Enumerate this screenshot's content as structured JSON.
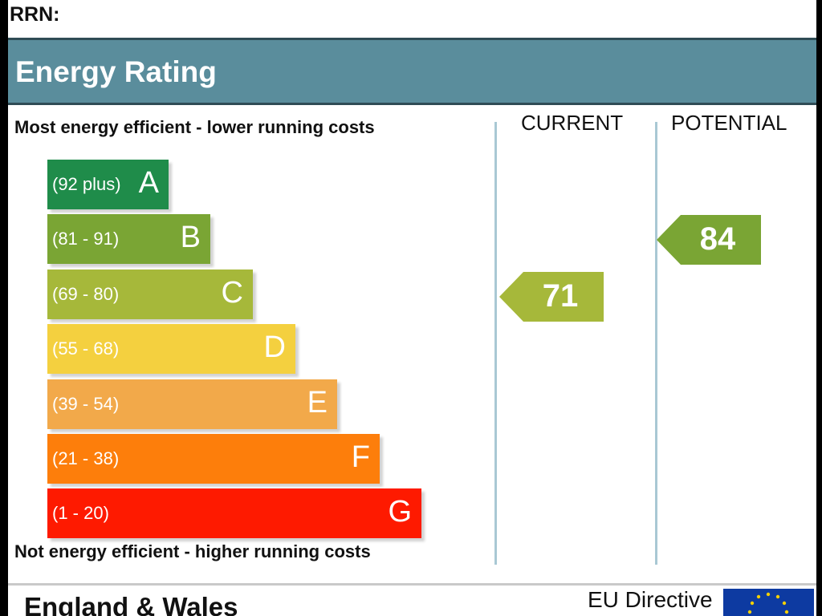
{
  "rrn_label": "RRN:",
  "header": {
    "title": "Energy Rating",
    "color": "#5a8d9c"
  },
  "scale": {
    "top_text": "Most energy efficient - lower running costs",
    "bottom_text": "Not energy efficient - higher running costs",
    "bands": [
      {
        "range": "(92 plus)",
        "letter": "A",
        "color": "#1f8c4a"
      },
      {
        "range": "(81 - 91)",
        "letter": "B",
        "color": "#7aa534"
      },
      {
        "range": "(69 - 80)",
        "letter": "C",
        "color": "#a6b83a"
      },
      {
        "range": "(55 - 68)",
        "letter": "D",
        "color": "#f4d03f"
      },
      {
        "range": "(39 - 54)",
        "letter": "E",
        "color": "#f2a94a"
      },
      {
        "range": "(21 - 38)",
        "letter": "F",
        "color": "#fd7e0b"
      },
      {
        "range": "(1 - 20)",
        "letter": "G",
        "color": "#fe1a00"
      }
    ]
  },
  "columns": {
    "current": {
      "label": "CURRENT",
      "value": "71",
      "band": "C",
      "color": "#a6b83a"
    },
    "potential": {
      "label": "POTENTIAL",
      "value": "84",
      "band": "B",
      "color": "#7aa534"
    }
  },
  "footer": {
    "region": "England & Wales",
    "eu_directive": "EU Directive",
    "flag_icon": "eu-flag-icon"
  }
}
